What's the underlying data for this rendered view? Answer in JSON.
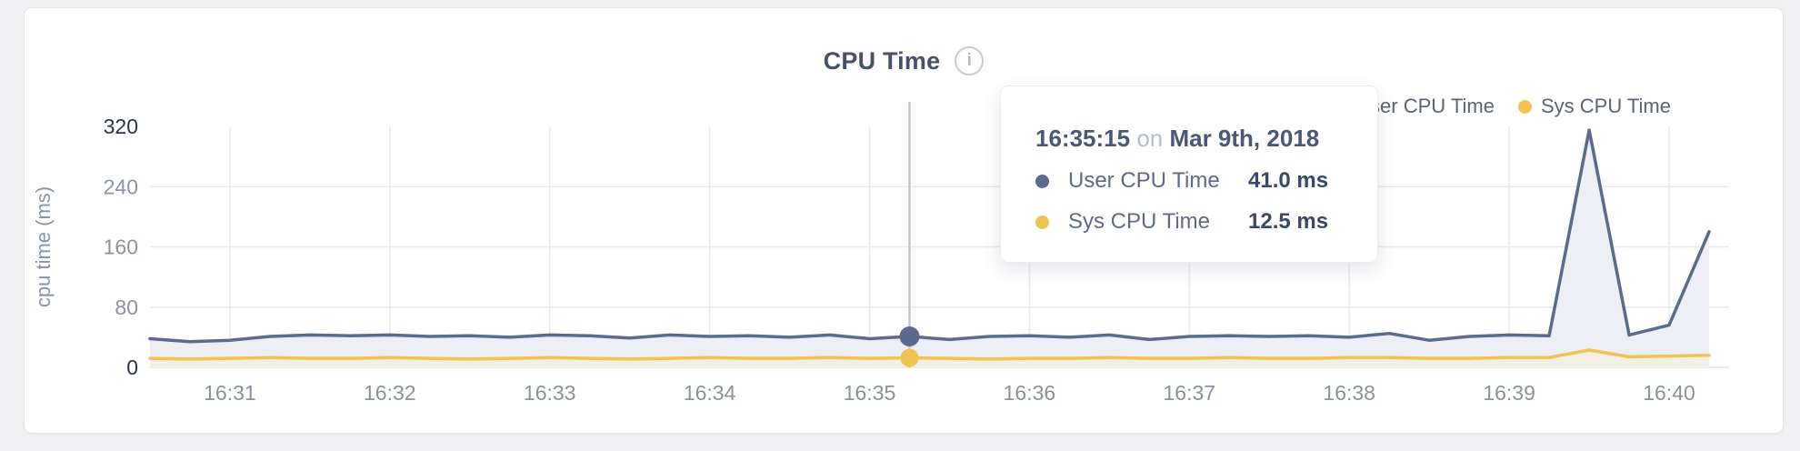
{
  "header": {
    "title": "CPU Time",
    "info_icon": "i"
  },
  "legend": [
    {
      "label": "User CPU Time",
      "color": "#5b6b8e"
    },
    {
      "label": "Sys CPU Time",
      "color": "#f0c452"
    }
  ],
  "tooltip": {
    "time": "16:35:15",
    "connector": "on",
    "date": "Mar 9th, 2018",
    "rows": [
      {
        "label": "User CPU Time",
        "value": "41.0 ms",
        "color": "#5b6b8e"
      },
      {
        "label": "Sys CPU Time",
        "value": "12.5 ms",
        "color": "#f0c452"
      }
    ]
  },
  "chart_data": {
    "type": "area",
    "title": "CPU Time",
    "xlabel": "",
    "ylabel": "cpu time (ms)",
    "ylim": [
      0,
      320
    ],
    "y_ticks": [
      0,
      80,
      160,
      240,
      320
    ],
    "x_ticks": [
      "16:31",
      "16:32",
      "16:33",
      "16:34",
      "16:35",
      "16:36",
      "16:37",
      "16:38",
      "16:39",
      "16:40"
    ],
    "start_time": "16:30:30",
    "interval_seconds": 15,
    "grid": true,
    "legend_position": "top-right",
    "hover": {
      "index": 19,
      "time": "16:35:15",
      "user_ms": 41.0,
      "sys_ms": 12.5
    },
    "series": [
      {
        "name": "User CPU Time",
        "color": "#5b6b8e",
        "fill": "#edeff4",
        "unit": "ms",
        "values": [
          38,
          34,
          36,
          41,
          43,
          42,
          43,
          41,
          42,
          40,
          43,
          42,
          39,
          43,
          41,
          42,
          40,
          43,
          38,
          41,
          37,
          41,
          42,
          40,
          43,
          37,
          41,
          42,
          41,
          42,
          40,
          45,
          36,
          41,
          43,
          42,
          315,
          43,
          56,
          180
        ]
      },
      {
        "name": "Sys CPU Time",
        "color": "#f0c452",
        "fill": "#f3f0e5",
        "unit": "ms",
        "values": [
          12,
          11,
          12,
          13,
          12,
          12,
          13,
          12,
          11,
          12,
          13,
          12,
          11,
          12,
          13,
          12,
          12,
          13,
          12,
          12.5,
          12,
          11,
          12,
          12,
          13,
          12,
          12,
          13,
          12,
          12,
          13,
          13,
          12,
          12,
          13,
          13,
          23,
          14,
          15,
          16
        ]
      }
    ]
  }
}
